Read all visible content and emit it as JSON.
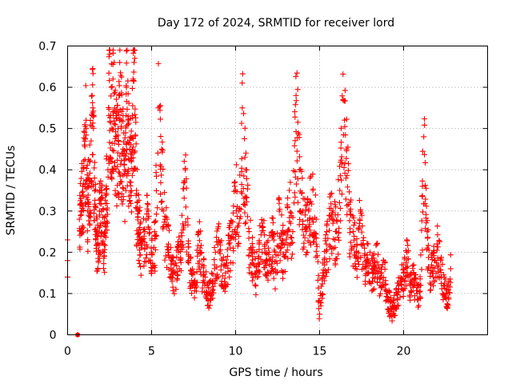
{
  "chart_data": {
    "type": "scatter",
    "title": "Day 172 of 2024, SRMTID for receiver lord",
    "xlabel": "GPS time / hours",
    "ylabel": "SRMTID / TECUs",
    "xlim": [
      0,
      25
    ],
    "ylim": [
      0,
      0.7
    ],
    "xticks": [
      0,
      5,
      10,
      15,
      20
    ],
    "xtick_labels": [
      "0",
      "5",
      "10",
      "15",
      "20"
    ],
    "yticks": [
      0,
      0.1,
      0.2,
      0.3,
      0.4,
      0.5,
      0.6,
      0.7
    ],
    "ytick_labels": [
      "0",
      "0.1",
      "0.2",
      "0.3",
      "0.4",
      "0.5",
      "0.6",
      "0.7"
    ],
    "grid": true,
    "marker": "plus",
    "color": "#ff0000",
    "series": [
      {
        "name": "SRMTID",
        "x": [
          0.0,
          0.0,
          0.0,
          0.6,
          0.6,
          0.7,
          0.8,
          0.9,
          1.0,
          1.1,
          1.2,
          1.3,
          1.4,
          1.5,
          1.6,
          1.7,
          1.8,
          1.9,
          2.0,
          2.1,
          2.2,
          2.3,
          2.4,
          2.5,
          2.6,
          2.7,
          2.8,
          2.9,
          3.0,
          3.1,
          3.2,
          3.3,
          3.4,
          3.5,
          3.6,
          3.7,
          3.8,
          3.9,
          4.0,
          4.1,
          4.2,
          4.3,
          4.4,
          4.6,
          4.8,
          5.0,
          5.2,
          5.4,
          5.6,
          5.8,
          6.0,
          6.2,
          6.4,
          6.6,
          6.8,
          7.0,
          7.2,
          7.4,
          7.6,
          7.8,
          8.0,
          8.2,
          8.4,
          8.6,
          8.8,
          9.0,
          9.2,
          9.4,
          9.6,
          9.8,
          10.0,
          10.2,
          10.4,
          10.6,
          10.8,
          11.0,
          11.2,
          11.4,
          11.6,
          11.8,
          12.0,
          12.2,
          12.4,
          12.6,
          12.8,
          13.0,
          13.2,
          13.4,
          13.6,
          13.8,
          14.0,
          14.2,
          14.4,
          14.6,
          14.8,
          15.0,
          15.2,
          15.4,
          15.6,
          15.8,
          16.0,
          16.2,
          16.4,
          16.6,
          16.8,
          17.0,
          17.2,
          17.4,
          17.6,
          17.8,
          18.0,
          18.2,
          18.4,
          18.6,
          18.8,
          19.0,
          19.2,
          19.4,
          19.6,
          19.8,
          20.0,
          20.2,
          20.4,
          20.6,
          20.8,
          21.0,
          21.2,
          21.4,
          21.6,
          21.8,
          22.0,
          22.2,
          22.4,
          22.6,
          22.8
        ],
        "y": [
          0.23,
          0.18,
          0.14,
          0.0,
          0.0,
          0.28,
          0.33,
          0.36,
          0.46,
          0.52,
          0.3,
          0.42,
          0.47,
          0.55,
          0.38,
          0.25,
          0.22,
          0.3,
          0.33,
          0.27,
          0.24,
          0.36,
          0.4,
          0.68,
          0.6,
          0.62,
          0.55,
          0.48,
          0.5,
          0.58,
          0.52,
          0.45,
          0.4,
          0.6,
          0.53,
          0.45,
          0.42,
          0.62,
          0.67,
          0.35,
          0.3,
          0.26,
          0.22,
          0.25,
          0.3,
          0.2,
          0.24,
          0.55,
          0.45,
          0.28,
          0.22,
          0.18,
          0.15,
          0.2,
          0.24,
          0.4,
          0.18,
          0.15,
          0.12,
          0.25,
          0.17,
          0.14,
          0.1,
          0.13,
          0.2,
          0.23,
          0.18,
          0.15,
          0.22,
          0.25,
          0.35,
          0.3,
          0.55,
          0.4,
          0.25,
          0.2,
          0.15,
          0.22,
          0.26,
          0.18,
          0.2,
          0.25,
          0.15,
          0.3,
          0.22,
          0.2,
          0.35,
          0.25,
          0.58,
          0.4,
          0.3,
          0.25,
          0.32,
          0.35,
          0.28,
          0.05,
          0.15,
          0.22,
          0.28,
          0.3,
          0.25,
          0.35,
          0.57,
          0.45,
          0.3,
          0.25,
          0.2,
          0.28,
          0.22,
          0.18,
          0.2,
          0.15,
          0.22,
          0.12,
          0.18,
          0.1,
          0.08,
          0.07,
          0.1,
          0.13,
          0.15,
          0.2,
          0.12,
          0.15,
          0.1,
          0.12,
          0.48,
          0.25,
          0.15,
          0.2,
          0.22,
          0.18,
          0.12,
          0.1,
          0.16
        ]
      }
    ],
    "extra_points": {
      "x": [
        0.6,
        0.6
      ],
      "y": [
        0.0,
        0.0
      ]
    }
  }
}
